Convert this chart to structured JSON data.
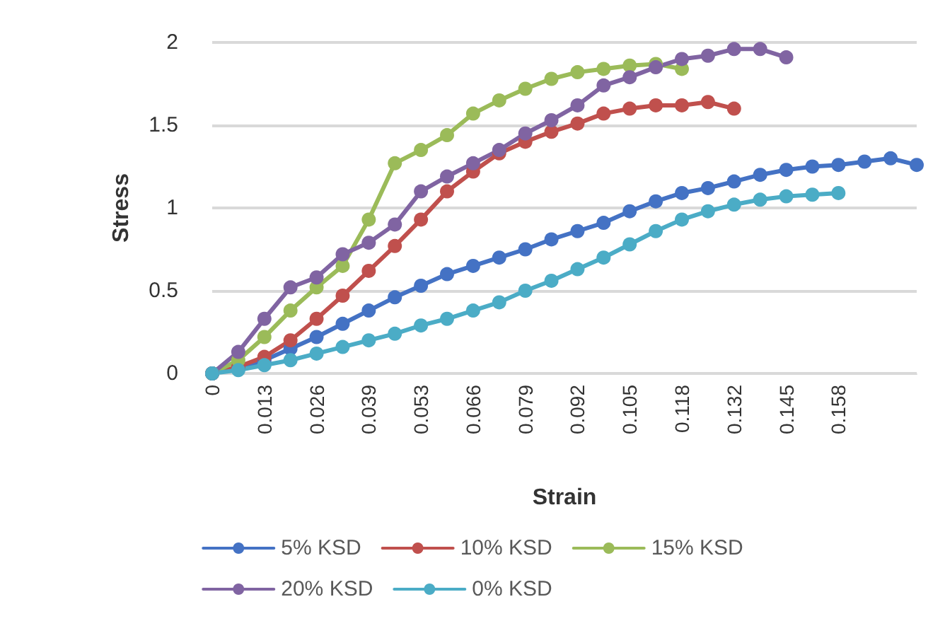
{
  "chart_data": {
    "type": "line",
    "xlabel": "Strain",
    "ylabel": "Stress",
    "categories": [
      "0",
      null,
      "0.013",
      null,
      "0.026",
      null,
      "0.039",
      null,
      "0.053",
      null,
      "0.066",
      null,
      "0.079",
      null,
      "0.092",
      null,
      "0.105",
      null,
      "0.118",
      null,
      "0.132",
      null,
      "0.145",
      null,
      "0.158",
      null,
      null,
      null
    ],
    "series": [
      {
        "name": "5% KSD",
        "color": "#4472c4",
        "values": [
          0,
          0.03,
          0.08,
          0.15,
          0.22,
          0.3,
          0.38,
          0.46,
          0.53,
          0.6,
          0.65,
          0.7,
          0.75,
          0.81,
          0.86,
          0.91,
          0.98,
          1.04,
          1.09,
          1.12,
          1.16,
          1.2,
          1.23,
          1.25,
          1.26,
          1.28,
          1.3,
          1.26
        ]
      },
      {
        "name": "10% KSD",
        "color": "#c0504d",
        "values": [
          0,
          0.04,
          0.1,
          0.2,
          0.33,
          0.47,
          0.62,
          0.77,
          0.93,
          1.1,
          1.22,
          1.33,
          1.4,
          1.46,
          1.51,
          1.57,
          1.6,
          1.62,
          1.62,
          1.64,
          1.6,
          null,
          null,
          null,
          null,
          null,
          null,
          null
        ]
      },
      {
        "name": "15% KSD",
        "color": "#9bbb59",
        "values": [
          0,
          0.08,
          0.22,
          0.38,
          0.52,
          0.65,
          0.93,
          1.27,
          1.35,
          1.44,
          1.57,
          1.65,
          1.72,
          1.78,
          1.82,
          1.84,
          1.86,
          1.87,
          1.84,
          null,
          null,
          null,
          null,
          null,
          null,
          null,
          null,
          null
        ]
      },
      {
        "name": "20% KSD",
        "color": "#8064a2",
        "values": [
          0,
          0.13,
          0.33,
          0.52,
          0.58,
          0.72,
          0.79,
          0.9,
          1.1,
          1.19,
          1.27,
          1.35,
          1.45,
          1.53,
          1.62,
          1.74,
          1.79,
          1.85,
          1.9,
          1.92,
          1.96,
          1.96,
          1.91,
          null,
          null,
          null,
          null,
          null
        ]
      },
      {
        "name": "0% KSD",
        "color": "#4bacc6",
        "values": [
          0,
          0.02,
          0.05,
          0.08,
          0.12,
          0.16,
          0.2,
          0.24,
          0.29,
          0.33,
          0.38,
          0.43,
          0.5,
          0.56,
          0.63,
          0.7,
          0.78,
          0.86,
          0.93,
          0.98,
          1.02,
          1.05,
          1.07,
          1.08,
          1.09,
          null,
          null,
          null
        ]
      }
    ],
    "ylim": [
      0,
      2
    ],
    "yticks": [
      0,
      0.5,
      1,
      1.5,
      2
    ],
    "grid": "y",
    "legend": "bottom",
    "marker": "circle",
    "line_style": "solid"
  }
}
